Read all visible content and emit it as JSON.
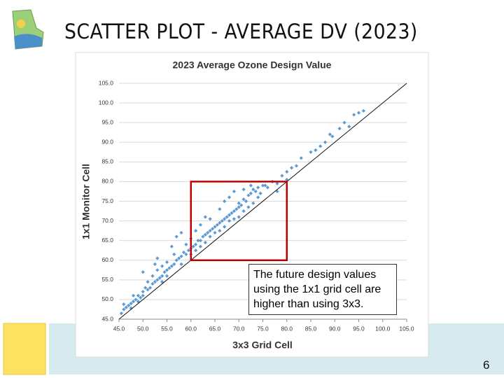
{
  "slide_title": "SCATTER PLOT - AVERAGE DV (2023)",
  "page_number": "6",
  "chart_data": {
    "type": "scatter",
    "title": "2023 Average Ozone Design Value",
    "xlabel": "3x3 Grid Cell",
    "ylabel": "1x1 Monitor Cell",
    "annotation": "The future design values using the 1x1 grid cell are higher than using 3x3.",
    "color": "#5b9bd5",
    "grid": true,
    "diagonal_line": true,
    "highlight": {
      "x": [
        60,
        80
      ],
      "y": [
        60,
        80
      ],
      "color": "#c00000"
    },
    "xlim": [
      45,
      105
    ],
    "ylim": [
      45,
      105
    ],
    "xticks": [
      {
        "value": 45,
        "label": "45.0"
      },
      {
        "value": 50,
        "label": "50.0"
      },
      {
        "value": 55,
        "label": "55.0"
      },
      {
        "value": 60,
        "label": "60.0"
      },
      {
        "value": 65,
        "label": "65.0"
      },
      {
        "value": 70,
        "label": "70.0"
      },
      {
        "value": 75,
        "label": "75.0"
      },
      {
        "value": 80,
        "label": "80.0"
      },
      {
        "value": 85,
        "label": "85.0"
      },
      {
        "value": 90,
        "label": "90.0"
      },
      {
        "value": 95,
        "label": "95.0"
      },
      {
        "value": 100,
        "label": "100.0"
      },
      {
        "value": 105,
        "label": "105.0"
      }
    ],
    "yticks": [
      {
        "value": 45,
        "label": "45.0"
      },
      {
        "value": 50,
        "label": "50.0"
      },
      {
        "value": 55,
        "label": "55.0"
      },
      {
        "value": 60,
        "label": "60.0"
      },
      {
        "value": 65,
        "label": "65.0"
      },
      {
        "value": 70,
        "label": "70.0"
      },
      {
        "value": 75,
        "label": "75.0"
      },
      {
        "value": 80,
        "label": "80.0"
      },
      {
        "value": 85,
        "label": "85.0"
      },
      {
        "value": 90,
        "label": "90.0"
      },
      {
        "value": 95,
        "label": "95.0"
      },
      {
        "value": 100,
        "label": "100.0"
      },
      {
        "value": 105,
        "label": "105.0"
      }
    ],
    "x": [
      45.5,
      46,
      46.5,
      47,
      47.5,
      48,
      48.5,
      49,
      49.5,
      50,
      46,
      47.5,
      48,
      49,
      50,
      50.5,
      51,
      51.5,
      52,
      52.5,
      53,
      53.5,
      54,
      54.5,
      55,
      52,
      53,
      54,
      55,
      51,
      52.5,
      53,
      50,
      55.5,
      56,
      56.5,
      57,
      57.5,
      58,
      58.5,
      59,
      59.5,
      60,
      56,
      57,
      58,
      56.5,
      58,
      59,
      60,
      55,
      54,
      60.5,
      61,
      61.5,
      62,
      62.5,
      63,
      63.5,
      64,
      64.5,
      65,
      61,
      62,
      63,
      64,
      65,
      62,
      63,
      61,
      64,
      60,
      65.5,
      66,
      66.5,
      67,
      67.5,
      68,
      68.5,
      69,
      69.5,
      70,
      66,
      67,
      68,
      69,
      70,
      66,
      67,
      68,
      69,
      70,
      70.5,
      71,
      71.5,
      72,
      72.5,
      73,
      73.5,
      74,
      74.5,
      75,
      71,
      72,
      73,
      74,
      71,
      72.5,
      75.5,
      76,
      77,
      78,
      79,
      80,
      78,
      81,
      82,
      80,
      83,
      85,
      86,
      87,
      88,
      89,
      89.5,
      91,
      92,
      93,
      94,
      95,
      96
    ],
    "values": [
      46.5,
      47.5,
      48,
      48.5,
      49,
      49.5,
      50,
      51,
      50.5,
      52,
      48.8,
      47.8,
      51,
      49.5,
      51,
      53,
      52.5,
      53,
      54,
      54.5,
      55,
      55.5,
      56,
      57,
      57.5,
      56,
      57.5,
      54.5,
      56,
      54.5,
      59,
      60.5,
      57,
      58,
      58.5,
      59,
      60,
      60.5,
      61,
      62,
      61.5,
      62.5,
      63,
      63.5,
      66,
      67,
      61.5,
      59,
      64,
      61.5,
      59.5,
      58.5,
      63.5,
      64,
      65,
      65,
      66,
      66.5,
      67,
      67.5,
      68,
      68.5,
      62.5,
      63.5,
      64.5,
      66,
      67,
      69,
      71,
      67.5,
      70.5,
      65.5,
      69,
      69.5,
      70,
      70.5,
      71,
      71.5,
      72,
      72.5,
      73,
      73.5,
      67.5,
      68.5,
      70,
      70.5,
      71,
      73,
      75,
      76,
      77.5,
      74.5,
      74,
      75.5,
      75,
      76.5,
      77,
      78,
      77.5,
      78.5,
      77,
      79,
      72.5,
      73.5,
      74.5,
      76,
      78,
      79,
      79,
      78.5,
      80,
      79.5,
      81.5,
      82.5,
      77.5,
      83.5,
      84,
      80.5,
      86,
      87.5,
      88,
      89,
      90,
      92,
      91.5,
      93.5,
      95,
      94,
      97,
      97.5,
      98
    ]
  }
}
